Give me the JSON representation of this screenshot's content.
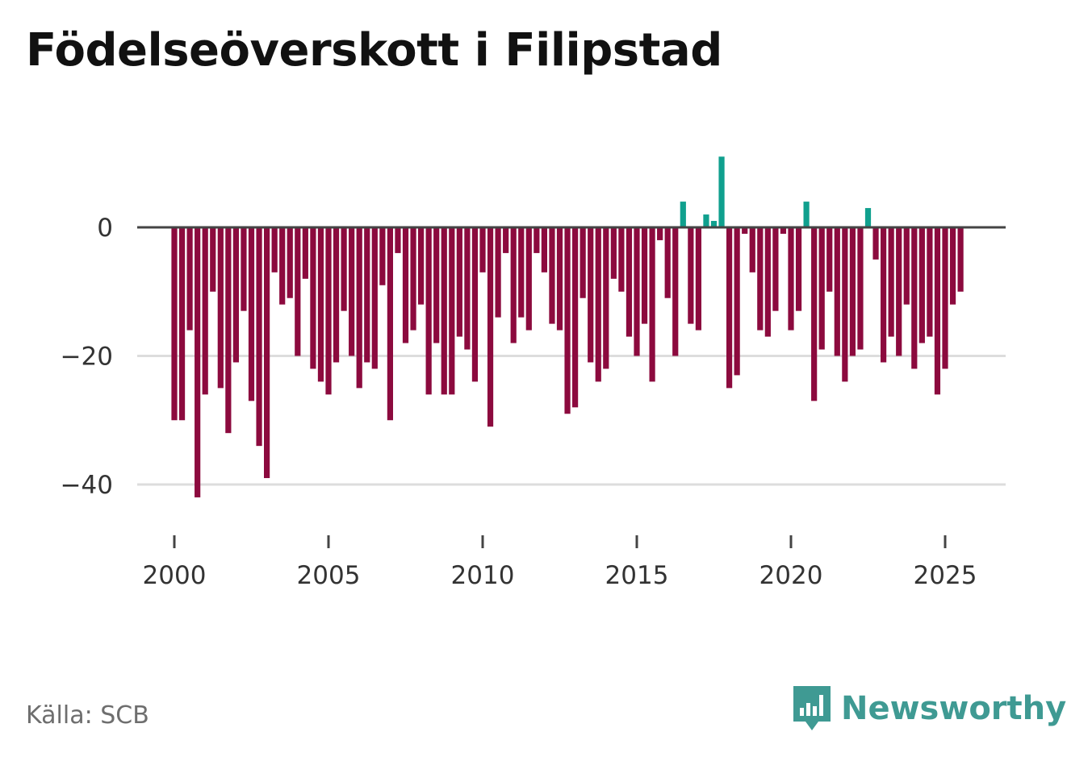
{
  "title": "Födelseöverskott i Filipstad",
  "source": "Källa: SCB",
  "brand": {
    "name": "Newsworthy",
    "icon": "newsworthy-logo-icon"
  },
  "colors": {
    "negative": "#8c0a3e",
    "positive": "#10a08e",
    "zero_line": "#444444",
    "grid": "#dddddd",
    "axis_text": "#333333"
  },
  "chart_data": {
    "type": "bar",
    "title": "Födelseöverskott i Filipstad",
    "xlabel": "",
    "ylabel": "",
    "ylim": [
      -46,
      12
    ],
    "xlim": [
      1999.5,
      2026.7
    ],
    "yticks": [
      0,
      -20,
      -40
    ],
    "ytick_labels": [
      "0",
      "−20",
      "−40"
    ],
    "xticks": [
      2000,
      2005,
      2010,
      2015,
      2020,
      2025
    ],
    "xtick_labels": [
      "2000",
      "2005",
      "2010",
      "2015",
      "2020",
      "2025"
    ],
    "start": 2000.0,
    "step": 0.25,
    "period": "quarterly",
    "values": [
      -30,
      -30,
      -16,
      -42,
      -26,
      -10,
      -25,
      -32,
      -21,
      -13,
      -27,
      -34,
      -39,
      -7,
      -12,
      -11,
      -20,
      -8,
      -22,
      -24,
      -26,
      -21,
      -13,
      -20,
      -25,
      -21,
      -22,
      -9,
      -30,
      -4,
      -18,
      -16,
      -12,
      -26,
      -18,
      -26,
      -26,
      -17,
      -19,
      -24,
      -7,
      -31,
      -14,
      -4,
      -18,
      -14,
      -16,
      -4,
      -7,
      -15,
      -16,
      -29,
      -28,
      -11,
      -21,
      -24,
      -22,
      -8,
      -10,
      -17,
      -20,
      -15,
      -24,
      -2,
      -11,
      -20,
      4,
      -15,
      -16,
      2,
      1,
      11,
      -25,
      -23,
      -1,
      -7,
      -16,
      -17,
      -13,
      -1,
      -16,
      -13,
      4,
      -27,
      -19,
      -10,
      -20,
      -24,
      -20,
      -19,
      3,
      -5,
      -21,
      -17,
      -20,
      -12,
      -22,
      -18,
      -17,
      -26,
      -22,
      -12,
      -10
    ]
  }
}
